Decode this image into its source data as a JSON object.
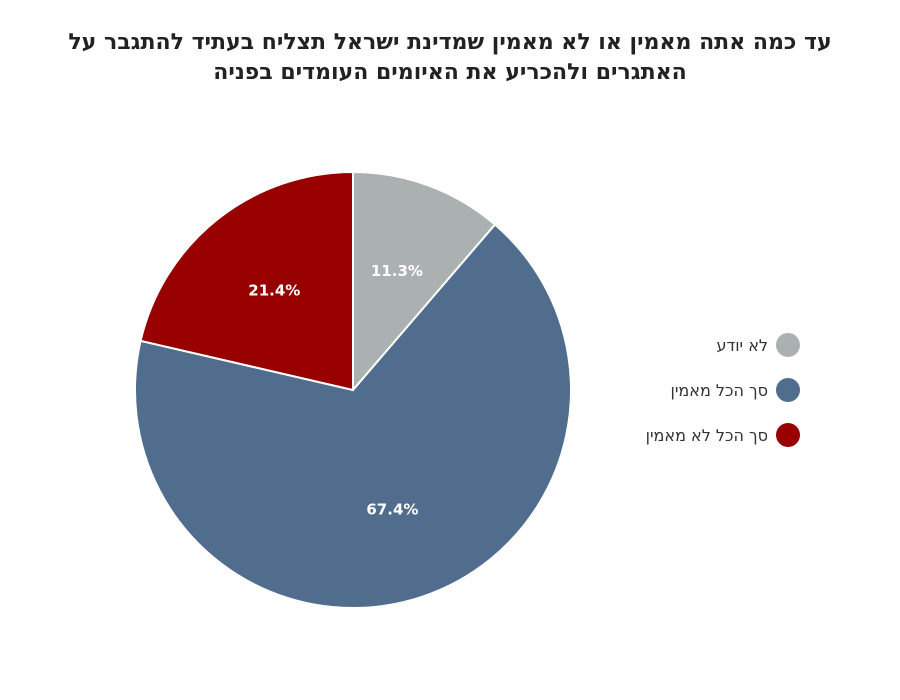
{
  "chart_data": {
    "type": "pie",
    "title": "עד כמה אתה מאמין או לא מאמין שמדינת ישראל תצליח בעתיד להתגבר על האתגרים ולהכריע את האיומים העומדים בפניה",
    "slices": [
      {
        "name": "לא יודע",
        "value": 11.3,
        "label": "11.3%",
        "color": "#abb0b0"
      },
      {
        "name": "סך הכל מאמין",
        "value": 67.4,
        "label": "67.4%",
        "color": "#506d8e"
      },
      {
        "name": "סך הכל לא מאמין",
        "value": 21.4,
        "label": "21.4%",
        "color": "#980000"
      }
    ],
    "legend_position": "right"
  }
}
